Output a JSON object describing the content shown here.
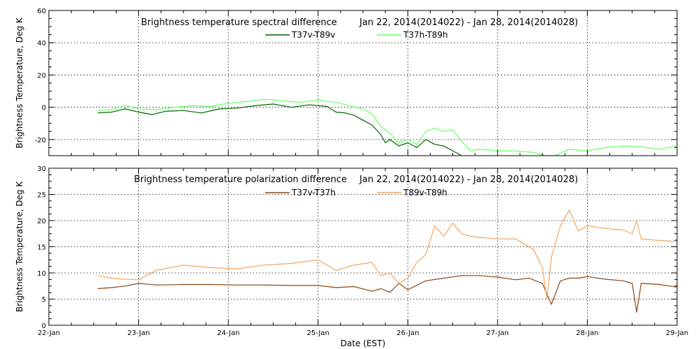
{
  "chart_data": [
    {
      "type": "line",
      "title": "Brightness temperature spectral difference",
      "date_range": "Jan 22, 2014(2014022) - Jan 28, 2014(2014028)",
      "ylabel": "Brightness Temperature, Deg K",
      "xlabel": "",
      "ylim": [
        -30,
        60
      ],
      "yticks": [
        -20,
        0,
        20,
        40,
        60
      ],
      "xlim": [
        22,
        29
      ],
      "grid": true,
      "legend_position": "top-center",
      "series": [
        {
          "name": "T37v-T89v",
          "color": "#006400",
          "x": [
            22.55,
            22.7,
            22.85,
            23.0,
            23.15,
            23.3,
            23.5,
            23.7,
            23.9,
            24.1,
            24.3,
            24.5,
            24.7,
            24.9,
            25.1,
            25.2,
            25.3,
            25.4,
            25.5,
            25.6,
            25.7,
            25.75,
            25.8,
            25.9,
            26.0,
            26.1,
            26.2,
            26.3,
            26.4,
            26.5,
            26.6
          ],
          "y": [
            -3.5,
            -3.0,
            -1.0,
            -3.0,
            -4.5,
            -2.5,
            -2.0,
            -3.5,
            -1.0,
            -0.5,
            1.0,
            2.0,
            0.0,
            1.5,
            0.5,
            -3.0,
            -3.5,
            -5.0,
            -8.0,
            -11.0,
            -17.0,
            -22.0,
            -20.0,
            -24.0,
            -22.0,
            -25.0,
            -20.0,
            -23.0,
            -24.0,
            -27.0,
            -30.0
          ]
        },
        {
          "name": "T37h-T89h",
          "color": "#66ff66",
          "x": [
            22.55,
            22.7,
            22.85,
            23.0,
            23.2,
            23.4,
            23.6,
            23.8,
            24.0,
            24.2,
            24.4,
            24.6,
            24.8,
            25.0,
            25.2,
            25.35,
            25.5,
            25.6,
            25.7,
            25.8,
            25.9,
            26.0,
            26.1,
            26.2,
            26.3,
            26.4,
            26.5,
            26.6,
            26.7,
            26.8,
            27.0,
            27.2,
            27.4,
            27.6,
            27.8,
            28.0,
            28.2,
            28.4,
            28.6,
            28.8,
            29.0
          ],
          "y": [
            -2.0,
            -1.5,
            1.0,
            -1.0,
            -1.5,
            0.0,
            1.0,
            0.5,
            2.5,
            3.5,
            5.0,
            4.0,
            3.0,
            4.5,
            3.0,
            1.0,
            -1.0,
            -4.0,
            -12.0,
            -16.0,
            -22.0,
            -20.0,
            -23.0,
            -15.0,
            -13.0,
            -15.0,
            -14.0,
            -21.0,
            -27.0,
            -26.0,
            -27.0,
            -27.0,
            -28.0,
            -31.0,
            -26.0,
            -27.0,
            -25.0,
            -24.0,
            -24.5,
            -26.0,
            -24.0
          ]
        }
      ]
    },
    {
      "type": "line",
      "title": "Brightness temperature polarization difference",
      "date_range": "Jan 22, 2014(2014022) - Jan 28, 2014(2014028)",
      "ylabel": "Brightness Temperature, Deg K",
      "xlabel": "Date (EST)",
      "ylim": [
        0,
        30
      ],
      "yticks": [
        0,
        5,
        10,
        15,
        20,
        25,
        30
      ],
      "xlim": [
        22,
        29
      ],
      "xticks": [
        22,
        23,
        24,
        25,
        26,
        27,
        28,
        29
      ],
      "xtick_labels": [
        "22-Jan",
        "23-Jan",
        "24-Jan",
        "25-Jan",
        "26-Jan",
        "27-Jan",
        "28-Jan",
        "29-Jan"
      ],
      "grid": true,
      "legend_position": "top-center",
      "series": [
        {
          "name": "T37v-T37h",
          "color": "#8b4513",
          "x": [
            22.55,
            22.7,
            22.85,
            23.0,
            23.2,
            23.5,
            23.8,
            24.1,
            24.4,
            24.7,
            25.0,
            25.2,
            25.4,
            25.6,
            25.7,
            25.8,
            25.9,
            26.0,
            26.2,
            26.4,
            26.6,
            26.8,
            27.0,
            27.2,
            27.35,
            27.5,
            27.6,
            27.7,
            27.8,
            27.9,
            28.0,
            28.2,
            28.4,
            28.5,
            28.55,
            28.6,
            28.8,
            29.0
          ],
          "y": [
            7.0,
            7.2,
            7.5,
            8.0,
            7.7,
            7.8,
            7.8,
            7.7,
            7.7,
            7.6,
            7.6,
            7.2,
            7.4,
            6.5,
            7.0,
            6.3,
            8.0,
            6.8,
            8.5,
            9.0,
            9.5,
            9.5,
            9.2,
            8.7,
            9.0,
            8.0,
            4.0,
            8.5,
            9.0,
            9.0,
            9.3,
            8.8,
            8.5,
            8.0,
            2.5,
            8.0,
            7.8,
            7.3
          ]
        },
        {
          "name": "T89v-T89h",
          "color": "#f4a460",
          "x": [
            22.55,
            22.7,
            22.85,
            23.0,
            23.2,
            23.5,
            23.8,
            24.1,
            24.4,
            24.7,
            25.0,
            25.2,
            25.4,
            25.6,
            25.7,
            25.8,
            25.9,
            26.0,
            26.1,
            26.2,
            26.3,
            26.4,
            26.5,
            26.6,
            26.7,
            26.8,
            27.0,
            27.2,
            27.3,
            27.4,
            27.5,
            27.55,
            27.6,
            27.7,
            27.8,
            27.9,
            28.0,
            28.2,
            28.4,
            28.5,
            28.55,
            28.6,
            28.8,
            29.0
          ],
          "y": [
            9.5,
            9.0,
            8.8,
            8.7,
            10.5,
            11.5,
            11.0,
            10.8,
            11.5,
            11.8,
            12.5,
            10.5,
            11.5,
            12.0,
            9.5,
            10.0,
            8.0,
            9.0,
            12.0,
            13.5,
            19.0,
            17.0,
            19.5,
            17.5,
            17.0,
            16.8,
            16.5,
            16.5,
            15.5,
            14.5,
            11.0,
            5.0,
            13.0,
            19.0,
            22.0,
            18.0,
            19.0,
            18.5,
            18.2,
            17.5,
            20.0,
            16.5,
            16.2,
            16.0
          ]
        }
      ]
    }
  ]
}
